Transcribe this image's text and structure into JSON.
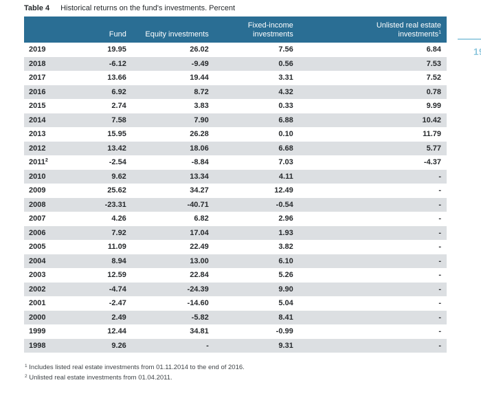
{
  "caption": {
    "label": "Table 4",
    "text": "Historical returns on the fund's investments. Percent"
  },
  "page_number": "19",
  "colors": {
    "header_bg": "#2a6e94",
    "row_alt_bg": "#dcdfe2",
    "accent_blue": "#a0d0e2",
    "page_number_color": "#8ec7dd",
    "body_text": "#26292c"
  },
  "table": {
    "headers": {
      "year": "",
      "fund": "Fund",
      "equity": "Equity investments",
      "fixed_income": "Fixed-income investments",
      "unlisted_line1": "Unlisted real estate",
      "unlisted_line2": "investments",
      "unlisted_sup": "1"
    },
    "rows": [
      {
        "year": "2019",
        "fund": "19.95",
        "equity": "26.02",
        "fixed_income": "7.56",
        "unlisted": "6.84"
      },
      {
        "year": "2018",
        "fund": "-6.12",
        "equity": "-9.49",
        "fixed_income": "0.56",
        "unlisted": "7.53"
      },
      {
        "year": "2017",
        "fund": "13.66",
        "equity": "19.44",
        "fixed_income": "3.31",
        "unlisted": "7.52"
      },
      {
        "year": "2016",
        "fund": "6.92",
        "equity": "8.72",
        "fixed_income": "4.32",
        "unlisted": "0.78"
      },
      {
        "year": "2015",
        "fund": "2.74",
        "equity": "3.83",
        "fixed_income": "0.33",
        "unlisted": "9.99"
      },
      {
        "year": "2014",
        "fund": "7.58",
        "equity": "7.90",
        "fixed_income": "6.88",
        "unlisted": "10.42"
      },
      {
        "year": "2013",
        "fund": "15.95",
        "equity": "26.28",
        "fixed_income": "0.10",
        "unlisted": "11.79"
      },
      {
        "year": "2012",
        "fund": "13.42",
        "equity": "18.06",
        "fixed_income": "6.68",
        "unlisted": "5.77"
      },
      {
        "year": "2011",
        "year_sup": "2",
        "fund": "-2.54",
        "equity": "-8.84",
        "fixed_income": "7.03",
        "unlisted": "-4.37"
      },
      {
        "year": "2010",
        "fund": "9.62",
        "equity": "13.34",
        "fixed_income": "4.11",
        "unlisted": "-"
      },
      {
        "year": "2009",
        "fund": "25.62",
        "equity": "34.27",
        "fixed_income": "12.49",
        "unlisted": "-"
      },
      {
        "year": "2008",
        "fund": "-23.31",
        "equity": "-40.71",
        "fixed_income": "-0.54",
        "unlisted": "-"
      },
      {
        "year": "2007",
        "fund": "4.26",
        "equity": "6.82",
        "fixed_income": "2.96",
        "unlisted": "-"
      },
      {
        "year": "2006",
        "fund": "7.92",
        "equity": "17.04",
        "fixed_income": "1.93",
        "unlisted": "-"
      },
      {
        "year": "2005",
        "fund": "11.09",
        "equity": "22.49",
        "fixed_income": "3.82",
        "unlisted": "-"
      },
      {
        "year": "2004",
        "fund": "8.94",
        "equity": "13.00",
        "fixed_income": "6.10",
        "unlisted": "-"
      },
      {
        "year": "2003",
        "fund": "12.59",
        "equity": "22.84",
        "fixed_income": "5.26",
        "unlisted": "-"
      },
      {
        "year": "2002",
        "fund": "-4.74",
        "equity": "-24.39",
        "fixed_income": "9.90",
        "unlisted": "-"
      },
      {
        "year": "2001",
        "fund": "-2.47",
        "equity": "-14.60",
        "fixed_income": "5.04",
        "unlisted": "-"
      },
      {
        "year": "2000",
        "fund": "2.49",
        "equity": "-5.82",
        "fixed_income": "8.41",
        "unlisted": "-"
      },
      {
        "year": "1999",
        "fund": "12.44",
        "equity": "34.81",
        "fixed_income": "-0.99",
        "unlisted": "-"
      },
      {
        "year": "1998",
        "fund": "9.26",
        "equity": "-",
        "fixed_income": "9.31",
        "unlisted": "-"
      }
    ]
  },
  "footnotes": [
    {
      "marker": "1",
      "text": "Includes listed real estate investments from 01.11.2014 to the end of 2016."
    },
    {
      "marker": "2",
      "text": "Unlisted real estate investments from 01.04.2011."
    }
  ]
}
